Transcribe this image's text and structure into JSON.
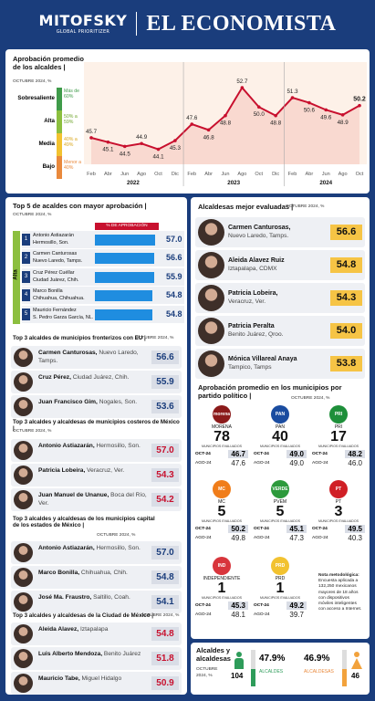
{
  "header": {
    "brand1": "MITOFSKY",
    "brand1_sub": "GLOBAL PRIORITIZER",
    "brand2": "EL ECONOMISTA"
  },
  "chart_title": "Aprobación promedio de los alcaldes |",
  "chart_sub": "OCTUBRE 2024, %",
  "bands": [
    {
      "label": "Sobresaliente",
      "range": "Más de 60%",
      "color": "#3f9b4a"
    },
    {
      "label": "Alta",
      "range": "50% a 59%",
      "color": "#8cbf3f"
    },
    {
      "label": "Media",
      "range": "40% a 49%",
      "color": "#f2c230"
    },
    {
      "label": "Bajo",
      "range": "Menor a 40%",
      "color": "#e9893c"
    }
  ],
  "chart_data": {
    "type": "line",
    "x": [
      "Feb",
      "Abr",
      "Jun",
      "Ago",
      "Oct",
      "Dic",
      "Feb",
      "Abr",
      "Jun",
      "Ago",
      "Oct",
      "Dic",
      "Feb",
      "Abr",
      "Jun",
      "Ago",
      "Oct"
    ],
    "values": [
      45.7,
      45.1,
      44.5,
      44.9,
      44.1,
      45.3,
      47.6,
      46.8,
      48.8,
      52.7,
      50.0,
      48.8,
      51.3,
      50.6,
      49.6,
      48.9,
      50.2
    ],
    "years": [
      "2022",
      "2023",
      "2024"
    ],
    "ylim": [
      42,
      55
    ],
    "color": "#c8102e"
  },
  "top5": {
    "title": "Top 5 de acaldes con mayor aprobación |",
    "sub": "OCTUBRE 2024, %",
    "header": "% DE APROBACIÓN",
    "side_label": "Alta",
    "rows": [
      {
        "rank": "1",
        "name": "Antonio Astiazarán",
        "city": "Hermosillo, Son.",
        "value": 57.0,
        "label": "57.0"
      },
      {
        "rank": "2",
        "name": "Carmen Canturosas",
        "city": "Nuevo Laredo, Tamps.",
        "value": 56.6,
        "label": "56.6"
      },
      {
        "rank": "3",
        "name": "Cruz Pérez Cuéllar",
        "city": "Ciudad Juárez, Chih.",
        "value": 55.9,
        "label": "55.9"
      },
      {
        "rank": "4",
        "name": "Marco Bonilla",
        "city": "Chihuahua, Chihuahua.",
        "value": 54.8,
        "label": "54.8"
      },
      {
        "rank": "5",
        "name": "Mauricio Fernández",
        "city": "S. Pedro Garza García, NL.",
        "value": 54.8,
        "label": "54.8"
      }
    ]
  },
  "eu": {
    "title": "Top 3 alcaldes de municipios fronterizos con EU |",
    "sub": "OCTUBRE 2024, %",
    "rows": [
      {
        "name": "Carmen Canturosas,",
        "city": "Nuevo Laredo, Tamps.",
        "value": "56.6"
      },
      {
        "name": "Cruz Pérez,",
        "city": "Ciudad Juárez, Chih.",
        "value": "55.9"
      },
      {
        "name": "Juan Francisco Gim,",
        "city": "Nogales, Son.",
        "value": "53.6"
      }
    ]
  },
  "costeros": {
    "title": "Top 3 alcaldes y alcaldesas de municipios costeros de México |",
    "sub": "OCTUBRE 2024, %",
    "rows": [
      {
        "name": "Antonio Astiazarán,",
        "city": "Hermosillo, Son.",
        "value": "57.0"
      },
      {
        "name": "Patricia Lobeira,",
        "city": "Veracruz, Ver.",
        "value": "54.3"
      },
      {
        "name": "Juan Manuel de Unanue,",
        "city": "Boca del Río, Ver.",
        "value": "54.2"
      }
    ]
  },
  "capital": {
    "title": "Top 3 alcaldes y alcaldesas de los municipios capital de los estados de México |",
    "sub": "OCTUBRE 2024, %",
    "rows": [
      {
        "name": "Antonio Astiazarán,",
        "city": "Hermosillo, Son.",
        "value": "57.0"
      },
      {
        "name": "Marco Bonilla,",
        "city": "Chihuahua, Chih.",
        "value": "54.8"
      },
      {
        "name": "José Ma. Fraustro,",
        "city": "Saltillo, Coah.",
        "value": "54.1"
      }
    ]
  },
  "cdmx": {
    "title": "Top 3 alcaldes y alcaldesas de la Ciudad de México |",
    "sub": "OCTUBRE 2024, %",
    "rows": [
      {
        "name": "Aleida Alavez,",
        "city": "Iztapalapa",
        "value": "54.8"
      },
      {
        "name": "Luis Alberto Mendoza,",
        "city": "Benito Juárez",
        "value": "51.8"
      },
      {
        "name": "Mauricio Tabe,",
        "city": "Miguel Hidalgo",
        "value": "50.9"
      }
    ]
  },
  "alcaldesas": {
    "title": "Alcaldesas mejor evaluadas |",
    "sub": "OCTUBRE 2024, %",
    "rows": [
      {
        "name": "Carmen Canturosas,",
        "city": "Nuevo Laredo, Tamps.",
        "value": "56.6"
      },
      {
        "name": "Aleida Alavez Ruiz",
        "city": "Iztapalapa, CDMX",
        "value": "54.8"
      },
      {
        "name": "Patricia Lobeira,",
        "city": "Veracruz, Ver.",
        "value": "54.3"
      },
      {
        "name": "Patricia Peralta",
        "city": "Benito Juárez, Qroo.",
        "value": "54.0"
      },
      {
        "name": "Mónica Villareal Anaya",
        "city": "Tampico, Tamps",
        "value": "53.8"
      }
    ]
  },
  "partidos": {
    "title": "Aprobación promedio en los municipios por partido político |",
    "sub": "OCTUBRE 2024, %",
    "eval_label": "MUNICIPIOS EVALUADOS",
    "oct_label": "OCT-24",
    "ago_label": "AGO-24",
    "items": [
      {
        "name": "MORENA",
        "logo_text": "morena",
        "color": "#8b1a1a",
        "count": "78",
        "oct": "46.7",
        "ago": "47.6"
      },
      {
        "name": "PAN",
        "logo_text": "PAN",
        "color": "#1a4ca0",
        "count": "40",
        "oct": "49.0",
        "ago": "49.0"
      },
      {
        "name": "PRI",
        "logo_text": "PRI",
        "color": "#1e8f3a",
        "count": "17",
        "oct": "48.2",
        "ago": "46.0"
      },
      {
        "name": "MC",
        "logo_text": "MC",
        "color": "#f07d1a",
        "count": "5",
        "oct": "50.2",
        "ago": "49.8"
      },
      {
        "name": "PVEM",
        "logo_text": "VERDE",
        "color": "#2d9a3c",
        "count": "5",
        "oct": "45.1",
        "ago": "47.3"
      },
      {
        "name": "PT",
        "logo_text": "PT",
        "color": "#d01f25",
        "count": "3",
        "oct": "49.5",
        "ago": "40.3"
      },
      {
        "name": "INDEPENDIENTE",
        "logo_text": "IND",
        "color": "#d8353c",
        "count": "1",
        "oct": "45.3",
        "ago": "48.1"
      },
      {
        "name": "PRD",
        "logo_text": "PRD",
        "color": "#f2c230",
        "count": "1",
        "oct": "49.2",
        "ago": "39.7"
      }
    ],
    "note_title": "Nota metodológica:",
    "note_body": "Encuesta aplicada a 132,250 mexicanos mayores de 18 años con dispositivos móviles inteligentes con acceso a Internet."
  },
  "footer": {
    "title": "Alcaldes y alcaldesas",
    "sub": "OCTUBRE 2024, %",
    "men_count": "104",
    "men_pct": "47.9%",
    "men_pct_value": 47.9,
    "men_label": "ALCALDES",
    "women_pct": "46.9%",
    "women_pct_value": 46.9,
    "women_label": "ALCALDESAS",
    "women_count": "46"
  }
}
